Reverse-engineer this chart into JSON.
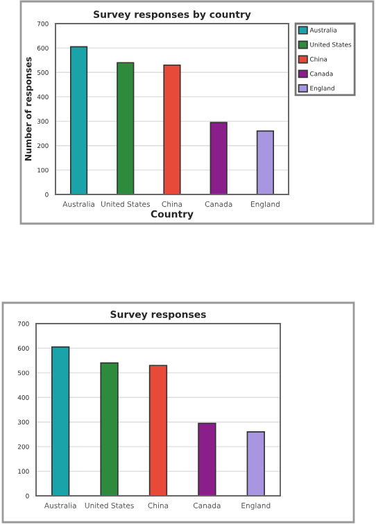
{
  "chart_data": [
    {
      "type": "bar",
      "title": "Survey responses by country",
      "xlabel": "Country",
      "ylabel": "Number of responses",
      "categories": [
        "Australia",
        "United States",
        "China",
        "Canada",
        "England"
      ],
      "series": [
        {
          "name": "Australia",
          "color": "#1aa3a8",
          "values": [
            605,
            null,
            null,
            null,
            null
          ]
        },
        {
          "name": "United States",
          "color": "#2e8b3e",
          "values": [
            null,
            540,
            null,
            null,
            null
          ]
        },
        {
          "name": "China",
          "color": "#e84a3a",
          "values": [
            null,
            null,
            530,
            null,
            null
          ]
        },
        {
          "name": "Canada",
          "color": "#8a1f8c",
          "values": [
            null,
            null,
            null,
            295,
            null
          ]
        },
        {
          "name": "England",
          "color": "#a996e0",
          "values": [
            null,
            null,
            null,
            null,
            260
          ]
        }
      ],
      "ylim": [
        0,
        700
      ],
      "yticks": [
        0,
        100,
        200,
        300,
        400,
        500,
        600,
        700
      ],
      "grid": "y",
      "legend": "right"
    },
    {
      "type": "bar",
      "title": "Survey responses",
      "categories": [
        "Australia",
        "United States",
        "China",
        "Canada",
        "England"
      ],
      "values": [
        605,
        540,
        530,
        295,
        260
      ],
      "colors": [
        "#1aa3a8",
        "#2e8b3e",
        "#e84a3a",
        "#8a1f8c",
        "#a996e0"
      ],
      "ylim": [
        0,
        700
      ],
      "yticks": [
        0,
        100,
        200,
        300,
        400,
        500,
        600,
        700
      ],
      "grid": "y"
    }
  ]
}
